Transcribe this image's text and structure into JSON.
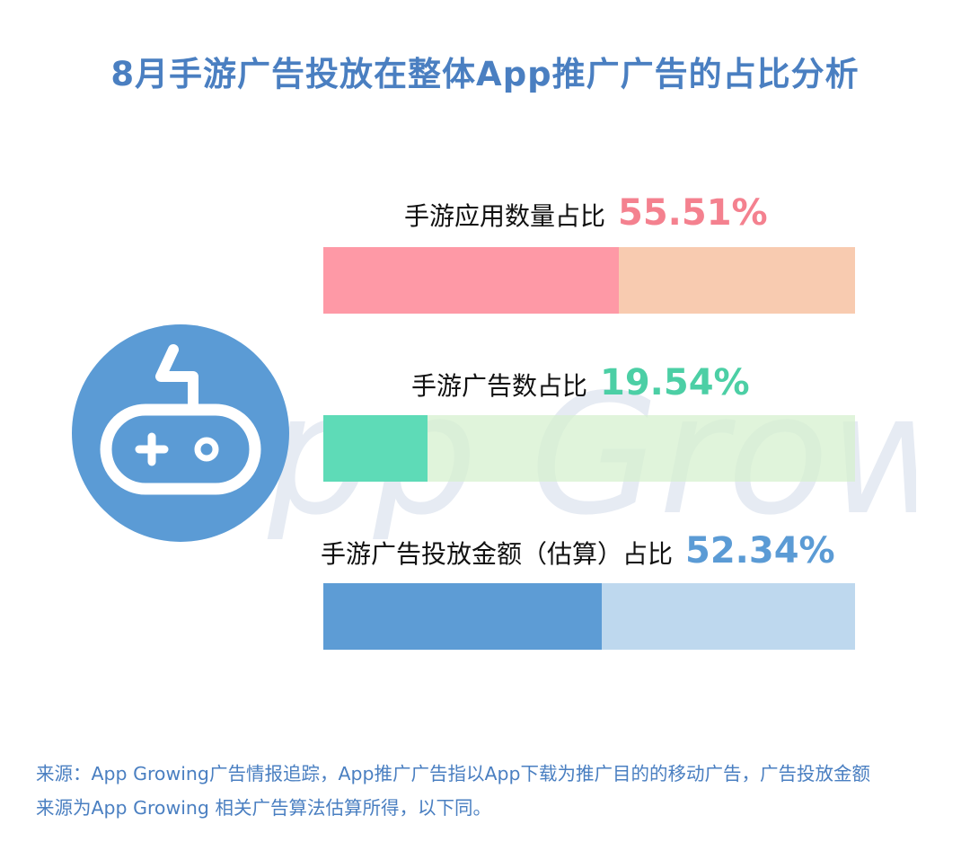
{
  "title": "8月手游广告投放在整体App推广广告的占比分析",
  "watermark_text": "App Growing",
  "chart_data": {
    "type": "bar",
    "categories": [
      "手游应用数量占比",
      "手游广告数占比",
      "手游广告投放金额（估算）占比"
    ],
    "values": [
      55.51,
      19.54,
      52.34
    ],
    "value_labels": [
      "55.51%",
      "19.54%",
      "52.34%"
    ],
    "unit": "%",
    "ylim": [
      0,
      100
    ],
    "colors": [
      {
        "fill": "#fe99a6",
        "track": "#f8cbb0",
        "label": "#f4818f"
      },
      {
        "fill": "#5edbb7",
        "track": "#dcf3d7",
        "label": "#4ccfa5"
      },
      {
        "fill": "#5d9cd5",
        "track": "#bed8ee",
        "label": "#5b9bd5"
      }
    ]
  },
  "icon": {
    "name": "gamepad-icon",
    "color": "#5b9bd5"
  },
  "footer": {
    "line1": "来源：App Growing广告情报追踪，App推广广告指以App下载为推广目的的移动广告，广告投放金额",
    "line2": "来源为App Growing 相关广告算法估算所得，以下同。"
  }
}
